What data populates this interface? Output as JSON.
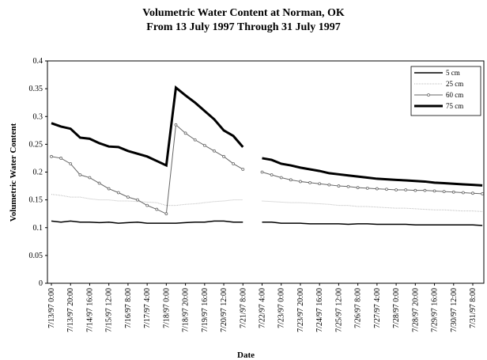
{
  "chart_data": {
    "type": "line",
    "title": "Volumetric Water Content at Norman, OK",
    "subtitle": "From 13 July 1997 Through 31 July 1997",
    "x_label": "Date",
    "y_label": "Volumetric Water Content",
    "categories": [
      "7/13/97 0:00",
      null,
      "7/13/97 20:00",
      null,
      "7/14/97 16:00",
      null,
      "7/15/97 12:00",
      null,
      "7/16/97 8:00",
      null,
      "7/17/97 4:00",
      null,
      "7/18/97 0:00",
      null,
      "7/18/97 20:00",
      null,
      "7/19/97 16:00",
      null,
      "7/20/97 12:00",
      null,
      "7/21/97 8:00",
      null,
      "7/22/97 4:00",
      null,
      "7/23/97 0:00",
      null,
      "7/23/97 20:00",
      null,
      "7/24/97 16:00",
      null,
      "7/25/97 12:00",
      null,
      "7/26/97 8:00",
      null,
      "7/27/97 4:00",
      null,
      "7/28/97 0:00",
      null,
      "7/28/97 20:00",
      null,
      "7/29/97 16:00",
      null,
      "7/30/97 12:00",
      null,
      "7/31/97 8:00",
      null
    ],
    "series": [
      {
        "name": "5 cm",
        "color": "#000000",
        "values": [
          0.112,
          0.11,
          0.112,
          0.11,
          0.11,
          0.109,
          0.11,
          0.108,
          0.109,
          0.11,
          0.108,
          0.108,
          0.108,
          0.108,
          0.109,
          0.11,
          0.11,
          0.112,
          0.112,
          0.11,
          0.11,
          null,
          0.11,
          0.11,
          0.108,
          0.108,
          0.108,
          0.107,
          0.107,
          0.107,
          0.107,
          0.106,
          0.107,
          0.107,
          0.106,
          0.106,
          0.106,
          0.106,
          0.105,
          0.105,
          0.105,
          0.105,
          0.105,
          0.105,
          0.105,
          0.104
        ]
      },
      {
        "name": "25 cm",
        "color": "#bbbbbb",
        "values": [
          0.16,
          0.158,
          0.155,
          0.155,
          0.152,
          0.15,
          0.15,
          0.148,
          0.148,
          0.147,
          0.146,
          0.145,
          0.14,
          0.14,
          0.142,
          0.143,
          0.145,
          0.147,
          0.148,
          0.15,
          0.15,
          null,
          0.148,
          0.147,
          0.146,
          0.145,
          0.145,
          0.144,
          0.143,
          0.142,
          0.14,
          0.14,
          0.138,
          0.138,
          0.137,
          0.136,
          0.135,
          0.135,
          0.134,
          0.133,
          0.132,
          0.132,
          0.131,
          0.13,
          0.13,
          0.129
        ]
      },
      {
        "name": "60 cm",
        "color": "#666666",
        "values": [
          0.228,
          0.225,
          0.215,
          0.195,
          0.19,
          0.18,
          0.17,
          0.163,
          0.155,
          0.15,
          0.14,
          0.133,
          0.125,
          0.285,
          0.27,
          0.258,
          0.248,
          0.238,
          0.228,
          0.215,
          0.205,
          null,
          0.2,
          0.195,
          0.19,
          0.186,
          0.183,
          0.181,
          0.179,
          0.177,
          0.175,
          0.174,
          0.172,
          0.171,
          0.17,
          0.169,
          0.168,
          0.168,
          0.167,
          0.167,
          0.166,
          0.165,
          0.164,
          0.163,
          0.162,
          0.161
        ]
      },
      {
        "name": "75 cm",
        "color": "#000000",
        "values": [
          0.288,
          0.282,
          0.278,
          0.262,
          0.26,
          0.252,
          0.246,
          0.245,
          0.238,
          0.233,
          0.228,
          0.22,
          0.212,
          0.352,
          0.338,
          0.325,
          0.31,
          0.295,
          0.275,
          0.265,
          0.245,
          null,
          0.225,
          0.222,
          0.215,
          0.212,
          0.208,
          0.205,
          0.202,
          0.198,
          0.196,
          0.194,
          0.192,
          0.19,
          0.188,
          0.187,
          0.186,
          0.185,
          0.184,
          0.183,
          0.181,
          0.18,
          0.179,
          0.178,
          0.177,
          0.176
        ]
      }
    ],
    "ylim": [
      0,
      0.4
    ],
    "yticks": [
      0,
      0.05,
      0.1,
      0.15,
      0.2,
      0.25,
      0.3,
      0.35,
      0.4
    ],
    "grid": false,
    "legend": "upper right"
  }
}
